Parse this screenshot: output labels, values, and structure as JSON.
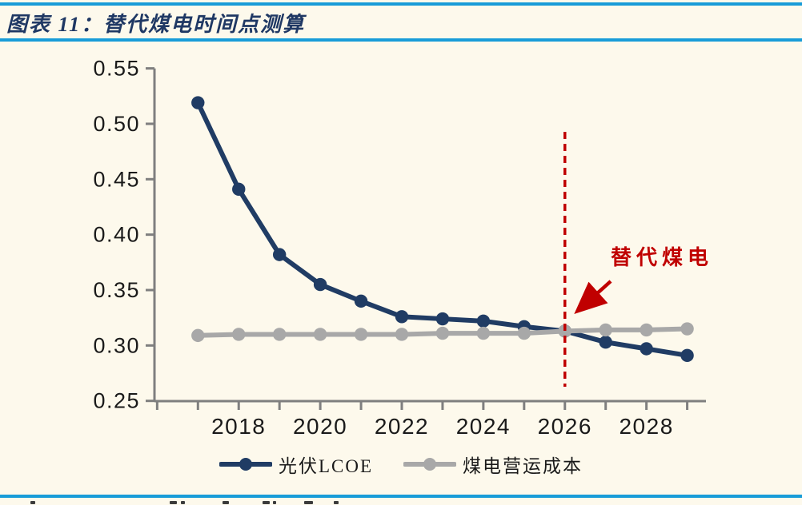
{
  "page": {
    "background_color": "#FDF9EC",
    "rule_color": "#189CD8"
  },
  "header": {
    "title": "图表 11：替代煤电时间点测算",
    "title_color": "#1F3864"
  },
  "chart_data": {
    "type": "line",
    "title": "替代煤电时间点测算",
    "x": [
      2017,
      2018,
      2019,
      2020,
      2021,
      2022,
      2023,
      2024,
      2025,
      2026,
      2027,
      2028,
      2029
    ],
    "series": [
      {
        "name": "光伏LCOE",
        "color": "#203C64",
        "marker": "circle",
        "values": [
          0.519,
          0.441,
          0.382,
          0.355,
          0.34,
          0.326,
          0.324,
          0.322,
          0.317,
          0.313,
          0.303,
          0.297,
          0.291
        ]
      },
      {
        "name": "煤电营运成本",
        "color": "#A8A8A8",
        "marker": "circle",
        "values": [
          0.309,
          0.31,
          0.31,
          0.31,
          0.31,
          0.31,
          0.311,
          0.311,
          0.311,
          0.313,
          0.314,
          0.314,
          0.315
        ]
      }
    ],
    "xlabel": "",
    "ylabel": "",
    "ylim": [
      0.25,
      0.55
    ],
    "yticks": [
      0.55,
      0.5,
      0.45,
      0.4,
      0.35,
      0.3,
      0.25
    ],
    "ytick_labels": [
      "0.55",
      "0.50",
      "0.45",
      "0.40",
      "0.35",
      "0.30",
      "0.25"
    ],
    "xticks_minor_years": [
      2016,
      2017,
      2018,
      2019,
      2020,
      2021,
      2022,
      2023,
      2024,
      2025,
      2026,
      2027,
      2028,
      2029
    ],
    "xtick_labels": [
      "2018",
      "2020",
      "2022",
      "2024",
      "2026",
      "2028"
    ],
    "xtick_label_years": [
      2018,
      2020,
      2022,
      2024,
      2026,
      2028
    ],
    "grid": false,
    "legend_position": "bottom",
    "axis_color": "#7F7F7F",
    "tick_label_color": "#1a1a1a",
    "annotation": {
      "text": "替代煤电",
      "color": "#C00000",
      "vline_x": 2026,
      "vline_style": "dashed",
      "arrow": true
    }
  },
  "legend": {
    "items": [
      {
        "label": "光伏LCOE",
        "color": "#203C64"
      },
      {
        "label": "煤电营运成本",
        "color": "#A8A8A8"
      }
    ]
  }
}
